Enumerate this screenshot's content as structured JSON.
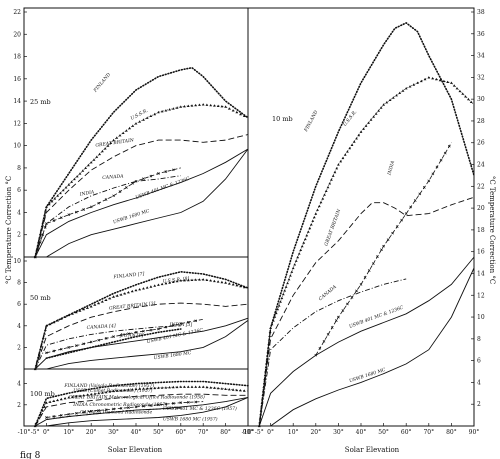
{
  "figure": {
    "caption": "fig 8",
    "xlabel": "Solar Elevation",
    "ylabel_left": "°C Temperature Correction °C",
    "ylabel_right": "°C Temperature Correction °C"
  },
  "chart_data": [
    {
      "type": "line",
      "title": "25 mb",
      "xlabel": "Solar Elevation",
      "ylabel": "°C Temperature Correction °C",
      "xlim": [
        -10,
        90
      ],
      "ylim": [
        0,
        22
      ],
      "xticks": [
        "-10°",
        "-5°",
        "0°",
        "10°",
        "20°",
        "30°",
        "40°",
        "50°",
        "60°",
        "70°",
        "80°",
        "90°"
      ],
      "yticks": [
        "2",
        "4",
        "6",
        "8",
        "10",
        "12",
        "14",
        "16",
        "18",
        "20",
        "22"
      ],
      "series": [
        {
          "name": "FINLAND",
          "style": "dotted",
          "x": [
            -5,
            0,
            10,
            20,
            30,
            40,
            50,
            60,
            65,
            70,
            80,
            90
          ],
          "y": [
            0,
            4.5,
            7.5,
            10.5,
            13,
            15,
            16.2,
            16.8,
            17,
            16.2,
            14,
            12.5
          ]
        },
        {
          "name": "U.S.S.R.",
          "style": "triangles",
          "x": [
            -5,
            0,
            10,
            20,
            30,
            40,
            50,
            60,
            70,
            80,
            90
          ],
          "y": [
            0,
            4.5,
            6.5,
            8.5,
            10.5,
            12,
            13,
            13.5,
            13.7,
            13.5,
            12.5
          ]
        },
        {
          "name": "GREAT BRITAIN",
          "style": "dashed",
          "x": [
            -5,
            0,
            10,
            20,
            30,
            40,
            50,
            60,
            70,
            80,
            90
          ],
          "y": [
            0,
            4,
            6,
            7.8,
            9,
            10,
            10.5,
            10.5,
            10.3,
            10.5,
            11
          ]
        },
        {
          "name": "CANADA",
          "style": "dash-dot",
          "x": [
            -5,
            0,
            10,
            20,
            30,
            40,
            50,
            60
          ],
          "y": [
            0,
            3,
            4.5,
            5.5,
            6.2,
            6.8,
            7,
            7.3
          ]
        },
        {
          "name": "INDIA",
          "style": "cross-dash",
          "x": [
            -5,
            0,
            10,
            20,
            30,
            40,
            50,
            60
          ],
          "y": [
            0,
            3,
            3.8,
            4.5,
            5.5,
            6.8,
            7.5,
            8
          ]
        },
        {
          "name": "USWB 401 MC & 1236C",
          "style": "solid",
          "x": [
            -5,
            0,
            10,
            20,
            30,
            40,
            50,
            60,
            70,
            80,
            90
          ],
          "y": [
            0,
            2,
            3.2,
            4,
            4.7,
            5.3,
            6,
            6.7,
            7.5,
            8.5,
            9.7
          ]
        },
        {
          "name": "USWB 1680 MC",
          "style": "solid",
          "x": [
            0,
            10,
            20,
            30,
            40,
            50,
            60,
            70,
            80,
            90
          ],
          "y": [
            0,
            1.2,
            2,
            2.5,
            3,
            3.5,
            4,
            5,
            7,
            9.7
          ]
        }
      ]
    },
    {
      "type": "line",
      "title": "50 mb",
      "xlabel": "Solar Elevation",
      "ylim": [
        0,
        10
      ],
      "yticks": [
        "2",
        "4",
        "6",
        "8",
        "10"
      ],
      "series": [
        {
          "name": "FINLAND [7]",
          "style": "dotted",
          "x": [
            -5,
            0,
            10,
            20,
            30,
            40,
            50,
            60,
            70,
            80,
            90
          ],
          "y": [
            0,
            4,
            5,
            6,
            7,
            7.8,
            8.5,
            9,
            8.8,
            8.3,
            7.5
          ]
        },
        {
          "name": "U.S.S.R. [8]",
          "style": "triangles",
          "x": [
            -5,
            0,
            10,
            20,
            30,
            40,
            50,
            60,
            70,
            80,
            90
          ],
          "y": [
            0,
            4,
            5,
            5.8,
            6.7,
            7.3,
            7.8,
            8.2,
            8.3,
            8,
            7.5
          ]
        },
        {
          "name": "GREAT BRITAIN [3]",
          "style": "dashed",
          "x": [
            -5,
            0,
            10,
            20,
            30,
            40,
            50,
            60,
            70,
            80,
            90
          ],
          "y": [
            0,
            3,
            4,
            4.8,
            5.3,
            5.7,
            6,
            6.1,
            6,
            5.8,
            6
          ]
        },
        {
          "name": "INDIA [5]",
          "style": "cross-dash",
          "x": [
            0,
            10,
            20,
            30,
            40,
            50,
            60,
            70
          ],
          "y": [
            1.5,
            2,
            2.5,
            3,
            3.4,
            3.7,
            4.2,
            4.6
          ]
        },
        {
          "name": "CANADA [4]",
          "style": "dash-dot",
          "x": [
            -5,
            0,
            10,
            20,
            30,
            40,
            50,
            60
          ],
          "y": [
            0,
            2.2,
            2.8,
            3.2,
            3.5,
            3.7,
            3.9,
            4
          ]
        },
        {
          "name": "JAPAN [9]",
          "style": "dotted",
          "x": [
            0,
            10,
            20,
            30,
            40,
            50,
            60
          ],
          "y": [
            1,
            1.5,
            2,
            2.5,
            3,
            3.4,
            3.7
          ]
        },
        {
          "name": "USWB 401 MC & 1236C",
          "style": "solid",
          "x": [
            -5,
            0,
            10,
            20,
            30,
            40,
            50,
            60,
            70,
            80,
            90
          ],
          "y": [
            0,
            1,
            1.6,
            2,
            2.3,
            2.6,
            2.9,
            3.2,
            3.5,
            4,
            4.7
          ]
        },
        {
          "name": "USWB 1680 MC",
          "style": "solid",
          "x": [
            0,
            10,
            20,
            30,
            40,
            50,
            60,
            70,
            80,
            90
          ],
          "y": [
            0,
            0.5,
            0.8,
            1,
            1.2,
            1.4,
            1.6,
            2,
            3,
            4.5
          ]
        }
      ]
    },
    {
      "type": "line",
      "title": "100 mb",
      "xlabel": "Solar Elevation",
      "ylim": [
        0,
        5
      ],
      "yticks": [
        "2",
        "4"
      ],
      "series": [
        {
          "name": "FINLAND (Vaisala Radiosonde) (1957)",
          "style": "dotted",
          "x": [
            -5,
            0,
            10,
            20,
            30,
            40,
            50,
            60,
            70,
            80,
            90
          ],
          "y": [
            0,
            2.6,
            3.1,
            3.5,
            3.8,
            4,
            4.1,
            4.2,
            4.2,
            4,
            3.8
          ]
        },
        {
          "name": "USSR (Comet Radiosonde) (1957)",
          "style": "triangles",
          "x": [
            -5,
            0,
            10,
            20,
            30,
            40,
            50,
            60,
            70,
            80,
            90
          ],
          "y": [
            0,
            2.2,
            2.7,
            3,
            3.3,
            3.5,
            3.6,
            3.7,
            3.7,
            3.5,
            3.3
          ]
        },
        {
          "name": "GREAT BRITAIN Meteorological Office Radiosonde (1958)",
          "style": "dashed",
          "x": [
            -5,
            0,
            10,
            20,
            30,
            40,
            50,
            60,
            70,
            80,
            90
          ],
          "y": [
            0,
            1.8,
            2.2,
            2.4,
            2.6,
            2.8,
            2.9,
            3,
            3,
            2.9,
            2.9
          ]
        },
        {
          "name": "INDIA Chronometric Radiosonde (1957)",
          "style": "cross-dash",
          "x": [
            0,
            10,
            20,
            30,
            40,
            50,
            60,
            70
          ],
          "y": [
            0.8,
            1.1,
            1.4,
            1.6,
            1.8,
            2,
            2.2,
            2.3
          ]
        },
        {
          "name": "CANADA Diamond Radiosonde",
          "style": "dash-dot",
          "x": [
            0,
            10,
            20,
            30,
            40,
            50,
            60
          ],
          "y": [
            0.6,
            0.9,
            1.1,
            1.3,
            1.5,
            1.6,
            1.7
          ]
        },
        {
          "name": "USWB 401 MC & 1236C (1957)",
          "style": "solid",
          "x": [
            -5,
            0,
            10,
            20,
            30,
            40,
            50,
            60,
            70,
            80,
            90
          ],
          "y": [
            0,
            0.6,
            0.9,
            1.1,
            1.3,
            1.5,
            1.6,
            1.8,
            2,
            2.3,
            2.7
          ]
        },
        {
          "name": "USWB 1680 MC (1957)",
          "style": "solid",
          "x": [
            0,
            10,
            20,
            30,
            40,
            50,
            60,
            70,
            80,
            90
          ],
          "y": [
            0,
            0.3,
            0.5,
            0.6,
            0.7,
            0.8,
            1,
            1.3,
            1.8,
            2.7
          ]
        }
      ]
    },
    {
      "type": "line",
      "title": "10 mb",
      "xlabel": "Solar Elevation",
      "ylabel": "°C Temperature Correction °C",
      "xlim": [
        -10,
        90
      ],
      "ylim": [
        0,
        38
      ],
      "xticks": [
        "-10°",
        "-5°",
        "0°",
        "10°",
        "20°",
        "30°",
        "40°",
        "50°",
        "60°",
        "70°",
        "80°",
        "90°"
      ],
      "yticks": [
        "2",
        "4",
        "6",
        "8",
        "10",
        "12",
        "14",
        "16",
        "18",
        "20",
        "22",
        "24",
        "26",
        "28",
        "30",
        "32",
        "34",
        "36",
        "38"
      ],
      "series": [
        {
          "name": "FINLAND",
          "style": "dotted",
          "x": [
            -5,
            0,
            10,
            20,
            30,
            40,
            50,
            55,
            60,
            65,
            70,
            80,
            90
          ],
          "y": [
            0,
            9,
            16,
            22,
            27,
            31.5,
            35,
            36.5,
            37,
            36.2,
            34,
            30,
            23
          ]
        },
        {
          "name": "U.S.S.R.",
          "style": "triangles",
          "x": [
            -5,
            0,
            10,
            20,
            30,
            40,
            50,
            60,
            70,
            80,
            90
          ],
          "y": [
            0,
            9,
            14.5,
            19.5,
            24,
            27,
            29.5,
            31,
            32,
            31.5,
            29.5
          ]
        },
        {
          "name": "GREAT BRITAIN",
          "style": "dashed",
          "x": [
            -5,
            0,
            10,
            20,
            30,
            40,
            45,
            50,
            55,
            60,
            70,
            80,
            90
          ],
          "y": [
            0,
            8,
            12,
            15,
            17,
            19.5,
            20.5,
            20.5,
            20,
            19.3,
            19.5,
            20.3,
            21
          ]
        },
        {
          "name": "INDIA",
          "style": "cross-dash",
          "x": [
            20,
            30,
            40,
            50,
            60,
            70,
            80
          ],
          "y": [
            6.5,
            10,
            13,
            16.5,
            19.5,
            22.5,
            26
          ]
        },
        {
          "name": "CANADA",
          "style": "dash-dot",
          "x": [
            -5,
            0,
            10,
            20,
            30,
            40,
            50,
            60
          ],
          "y": [
            0,
            7,
            9,
            10.5,
            11.5,
            12.3,
            13,
            13.5
          ]
        },
        {
          "name": "USWB 401 MC & 1236C",
          "style": "solid",
          "x": [
            -5,
            0,
            10,
            20,
            30,
            40,
            50,
            60,
            70,
            80,
            90
          ],
          "y": [
            0,
            3,
            5,
            6.5,
            7.7,
            8.7,
            9.5,
            10.3,
            11.5,
            13,
            15.5
          ]
        },
        {
          "name": "USWB 1680 MC",
          "style": "solid",
          "x": [
            0,
            10,
            20,
            30,
            40,
            50,
            60,
            70,
            80,
            90
          ],
          "y": [
            0,
            1.5,
            2.5,
            3.3,
            4,
            4.8,
            5.7,
            7,
            10,
            14.5
          ]
        }
      ]
    }
  ]
}
